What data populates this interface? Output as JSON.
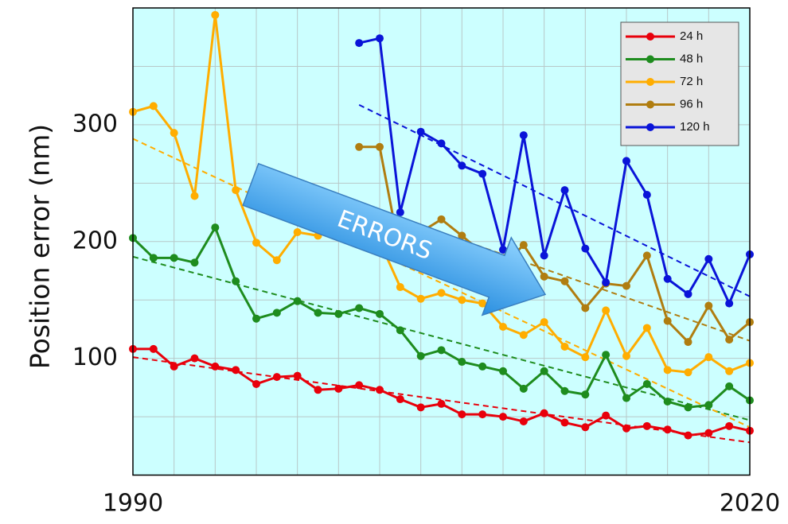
{
  "chart_data": {
    "type": "line",
    "ylabel": "Position error (nm)",
    "annotation": "ERRORS",
    "x": [
      1990,
      1991,
      1992,
      1993,
      1994,
      1995,
      1996,
      1997,
      1998,
      1999,
      2000,
      2001,
      2002,
      2003,
      2004,
      2005,
      2006,
      2007,
      2008,
      2009,
      2010,
      2011,
      2012,
      2013,
      2014,
      2015,
      2016,
      2017,
      2018,
      2019,
      2020
    ],
    "xlim": [
      1990,
      2020
    ],
    "xticks": [
      1990,
      2020
    ],
    "xgrid": [
      1992,
      1994,
      1996,
      1998,
      2000,
      2002,
      2004,
      2006,
      2008,
      2010,
      2012,
      2014,
      2016,
      2018
    ],
    "ylim": [
      0,
      400
    ],
    "yticks": [
      100,
      200,
      300
    ],
    "ygrid": [
      50,
      100,
      150,
      200,
      250,
      300,
      350
    ],
    "grid": true,
    "legend": "upper right",
    "series": [
      {
        "name": "24 h",
        "color": "#e8000b",
        "values": [
          108,
          108,
          93,
          100,
          93,
          90,
          78,
          84,
          85,
          73,
          74,
          77,
          73,
          65,
          58,
          61,
          52,
          52,
          50,
          46,
          53,
          45,
          41,
          51,
          40,
          42,
          39,
          34,
          36,
          42,
          38
        ],
        "trend": {
          "x": [
            1990,
            2020
          ],
          "values": [
            101,
            28
          ]
        }
      },
      {
        "name": "48 h",
        "color": "#1e8c1e",
        "values": [
          203,
          186,
          186,
          182,
          212,
          166,
          134,
          139,
          149,
          139,
          138,
          143,
          138,
          124,
          102,
          107,
          97,
          93,
          89,
          74,
          89,
          72,
          69,
          103,
          66,
          78,
          63,
          58,
          60,
          76,
          64
        ],
        "trend": {
          "x": [
            1990,
            2020
          ],
          "values": [
            187,
            47
          ]
        }
      },
      {
        "name": "72 h",
        "color": "#ffad00",
        "values": [
          311,
          316,
          293,
          239,
          394,
          244,
          199,
          184,
          208,
          205,
          230,
          210,
          200,
          161,
          151,
          156,
          150,
          147,
          127,
          120,
          131,
          110,
          101,
          141,
          102,
          126,
          90,
          88,
          101,
          89,
          96
        ],
        "trend": {
          "x": [
            1990,
            2020
          ],
          "values": [
            288,
            41
          ]
        }
      },
      {
        "name": "96 h",
        "color": "#b07d10",
        "values": [
          null,
          null,
          null,
          null,
          null,
          null,
          null,
          null,
          null,
          null,
          null,
          281,
          281,
          189,
          208,
          219,
          205,
          190,
          180,
          197,
          170,
          166,
          143,
          164,
          162,
          188,
          132,
          114,
          145,
          116,
          131
        ],
        "trend": {
          "x": [
            2001,
            2020
          ],
          "values": [
            232,
            115
          ]
        }
      },
      {
        "name": "120 h",
        "color": "#0a14d8",
        "values": [
          null,
          null,
          null,
          null,
          null,
          null,
          null,
          null,
          null,
          null,
          null,
          370,
          374,
          225,
          294,
          284,
          265,
          258,
          193,
          291,
          188,
          244,
          194,
          165,
          269,
          240,
          168,
          155,
          185,
          147,
          189
        ],
        "trend": {
          "x": [
            2001,
            2020
          ],
          "values": [
            317,
            153
          ]
        }
      }
    ]
  }
}
